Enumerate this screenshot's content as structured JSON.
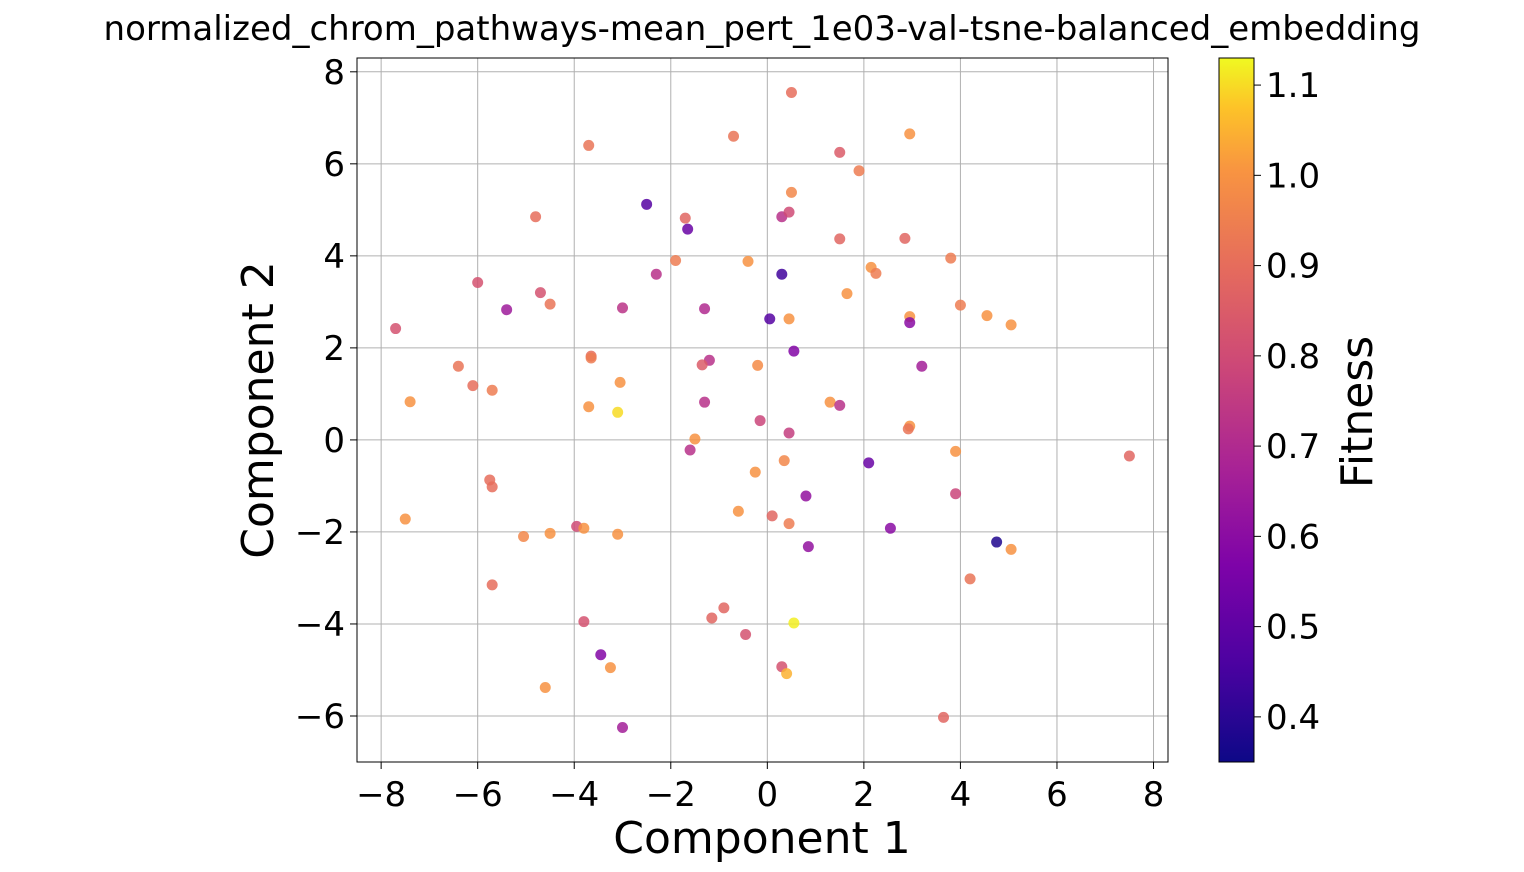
{
  "chart_data": {
    "type": "scatter",
    "title": "normalized_chrom_pathways-mean_pert_1e03-val-tsne-balanced_embedding",
    "xlabel": "Component 1",
    "ylabel": "Component 2",
    "xlim": [
      -8.5,
      8.3
    ],
    "ylim": [
      -7.0,
      8.3
    ],
    "xticks": [
      -8,
      -6,
      -4,
      -2,
      0,
      2,
      4,
      6,
      8
    ],
    "yticks": [
      -6,
      -4,
      -2,
      0,
      2,
      4,
      6,
      8
    ],
    "grid": true,
    "colormap": "plasma",
    "colorbar": {
      "label": "Fitness",
      "range": [
        0.35,
        1.13
      ],
      "ticks": [
        0.4,
        0.5,
        0.6,
        0.7,
        0.8,
        0.9,
        1.0,
        1.1
      ]
    },
    "points": [
      {
        "x": 0.5,
        "y": 7.55,
        "c": 0.9
      },
      {
        "x": -0.7,
        "y": 6.6,
        "c": 0.92
      },
      {
        "x": 2.95,
        "y": 6.65,
        "c": 1.0
      },
      {
        "x": -3.7,
        "y": 6.4,
        "c": 0.92
      },
      {
        "x": 1.5,
        "y": 6.25,
        "c": 0.85
      },
      {
        "x": 1.9,
        "y": 5.85,
        "c": 0.94
      },
      {
        "x": 0.5,
        "y": 5.38,
        "c": 0.97
      },
      {
        "x": -2.5,
        "y": 5.12,
        "c": 0.48
      },
      {
        "x": -4.8,
        "y": 4.85,
        "c": 0.9
      },
      {
        "x": -1.7,
        "y": 4.82,
        "c": 0.88
      },
      {
        "x": 0.3,
        "y": 4.85,
        "c": 0.72
      },
      {
        "x": 0.45,
        "y": 4.95,
        "c": 0.8
      },
      {
        "x": -1.65,
        "y": 4.58,
        "c": 0.52
      },
      {
        "x": 1.5,
        "y": 4.37,
        "c": 0.88
      },
      {
        "x": 2.85,
        "y": 4.38,
        "c": 0.88
      },
      {
        "x": -1.9,
        "y": 3.9,
        "c": 0.94
      },
      {
        "x": -0.4,
        "y": 3.88,
        "c": 1.0
      },
      {
        "x": 3.8,
        "y": 3.95,
        "c": 0.94
      },
      {
        "x": 2.15,
        "y": 3.75,
        "c": 1.0
      },
      {
        "x": 2.25,
        "y": 3.62,
        "c": 0.94
      },
      {
        "x": -2.3,
        "y": 3.6,
        "c": 0.72
      },
      {
        "x": 0.3,
        "y": 3.6,
        "c": 0.44
      },
      {
        "x": -6.0,
        "y": 3.42,
        "c": 0.82
      },
      {
        "x": -4.7,
        "y": 3.2,
        "c": 0.82
      },
      {
        "x": 1.65,
        "y": 3.18,
        "c": 1.0
      },
      {
        "x": -4.5,
        "y": 2.95,
        "c": 0.92
      },
      {
        "x": 4.0,
        "y": 2.93,
        "c": 0.94
      },
      {
        "x": -5.4,
        "y": 2.83,
        "c": 0.65
      },
      {
        "x": -3.0,
        "y": 2.87,
        "c": 0.73
      },
      {
        "x": -1.3,
        "y": 2.85,
        "c": 0.7
      },
      {
        "x": 4.55,
        "y": 2.7,
        "c": 1.0
      },
      {
        "x": 2.95,
        "y": 2.68,
        "c": 1.0
      },
      {
        "x": 0.05,
        "y": 2.63,
        "c": 0.48
      },
      {
        "x": 0.45,
        "y": 2.63,
        "c": 1.0
      },
      {
        "x": 5.05,
        "y": 2.5,
        "c": 1.0
      },
      {
        "x": 2.95,
        "y": 2.55,
        "c": 0.6
      },
      {
        "x": -7.7,
        "y": 2.42,
        "c": 0.82
      },
      {
        "x": 0.55,
        "y": 1.93,
        "c": 0.58
      },
      {
        "x": -3.65,
        "y": 1.82,
        "c": 0.9
      },
      {
        "x": -3.65,
        "y": 1.78,
        "c": 0.94
      },
      {
        "x": -1.2,
        "y": 1.73,
        "c": 0.72
      },
      {
        "x": -1.35,
        "y": 1.63,
        "c": 0.85
      },
      {
        "x": -0.2,
        "y": 1.62,
        "c": 0.98
      },
      {
        "x": 3.2,
        "y": 1.6,
        "c": 0.66
      },
      {
        "x": -6.4,
        "y": 1.6,
        "c": 0.92
      },
      {
        "x": -3.05,
        "y": 1.25,
        "c": 1.0
      },
      {
        "x": -6.1,
        "y": 1.18,
        "c": 0.9
      },
      {
        "x": -5.7,
        "y": 1.08,
        "c": 0.94
      },
      {
        "x": -7.4,
        "y": 0.83,
        "c": 1.0
      },
      {
        "x": -1.3,
        "y": 0.82,
        "c": 0.72
      },
      {
        "x": 1.3,
        "y": 0.82,
        "c": 1.0
      },
      {
        "x": 1.5,
        "y": 0.75,
        "c": 0.72
      },
      {
        "x": -3.7,
        "y": 0.72,
        "c": 1.0
      },
      {
        "x": -3.1,
        "y": 0.6,
        "c": 1.1
      },
      {
        "x": -0.15,
        "y": 0.42,
        "c": 0.78
      },
      {
        "x": 2.95,
        "y": 0.3,
        "c": 1.0
      },
      {
        "x": 2.92,
        "y": 0.24,
        "c": 0.92
      },
      {
        "x": 0.45,
        "y": 0.15,
        "c": 0.76
      },
      {
        "x": -1.5,
        "y": 0.02,
        "c": 1.0
      },
      {
        "x": -1.6,
        "y": -0.22,
        "c": 0.72
      },
      {
        "x": 3.9,
        "y": -0.25,
        "c": 1.0
      },
      {
        "x": 7.5,
        "y": -0.35,
        "c": 0.88
      },
      {
        "x": 0.35,
        "y": -0.45,
        "c": 0.97
      },
      {
        "x": 2.1,
        "y": -0.5,
        "c": 0.52
      },
      {
        "x": -0.25,
        "y": -0.7,
        "c": 1.0
      },
      {
        "x": -5.75,
        "y": -0.87,
        "c": 0.9
      },
      {
        "x": -5.7,
        "y": -1.02,
        "c": 0.9
      },
      {
        "x": 3.9,
        "y": -1.17,
        "c": 0.78
      },
      {
        "x": 0.8,
        "y": -1.22,
        "c": 0.62
      },
      {
        "x": -0.6,
        "y": -1.55,
        "c": 1.0
      },
      {
        "x": 0.1,
        "y": -1.65,
        "c": 0.88
      },
      {
        "x": -7.5,
        "y": -1.72,
        "c": 1.0
      },
      {
        "x": 0.45,
        "y": -1.82,
        "c": 0.94
      },
      {
        "x": -3.95,
        "y": -1.88,
        "c": 0.8
      },
      {
        "x": -3.8,
        "y": -1.92,
        "c": 1.0
      },
      {
        "x": 2.55,
        "y": -1.92,
        "c": 0.6
      },
      {
        "x": -4.5,
        "y": -2.03,
        "c": 1.0
      },
      {
        "x": -3.1,
        "y": -2.05,
        "c": 1.0
      },
      {
        "x": -5.05,
        "y": -2.1,
        "c": 0.97
      },
      {
        "x": 4.75,
        "y": -2.22,
        "c": 0.38
      },
      {
        "x": 0.85,
        "y": -2.32,
        "c": 0.62
      },
      {
        "x": 5.05,
        "y": -2.38,
        "c": 1.0
      },
      {
        "x": 4.2,
        "y": -3.02,
        "c": 0.92
      },
      {
        "x": -5.7,
        "y": -3.15,
        "c": 0.9
      },
      {
        "x": -0.9,
        "y": -3.65,
        "c": 0.88
      },
      {
        "x": -1.15,
        "y": -3.87,
        "c": 0.88
      },
      {
        "x": -3.8,
        "y": -3.95,
        "c": 0.82
      },
      {
        "x": 0.55,
        "y": -3.98,
        "c": 1.12
      },
      {
        "x": -0.45,
        "y": -4.23,
        "c": 0.82
      },
      {
        "x": -3.45,
        "y": -4.67,
        "c": 0.58
      },
      {
        "x": 0.3,
        "y": -4.93,
        "c": 0.82
      },
      {
        "x": -3.25,
        "y": -4.95,
        "c": 1.0
      },
      {
        "x": 0.4,
        "y": -5.08,
        "c": 1.05
      },
      {
        "x": -4.6,
        "y": -5.38,
        "c": 1.0
      },
      {
        "x": 3.65,
        "y": -6.03,
        "c": 0.88
      },
      {
        "x": -3.0,
        "y": -6.25,
        "c": 0.66
      }
    ]
  }
}
